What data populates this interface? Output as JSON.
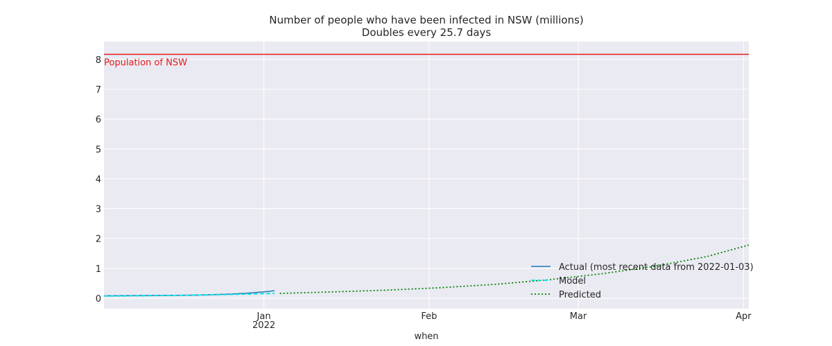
{
  "chart_data": {
    "type": "line",
    "title": "Number of people who have been infected in NSW (millions)",
    "subtitle": "Doubles every 25.7 days",
    "xlabel": "when",
    "ylabel": "",
    "xlim": [
      "2021-12-02",
      "2022-04-02"
    ],
    "ylim": [
      -0.35,
      8.6
    ],
    "grid": true,
    "legend_position": "lower-right",
    "x_ticks": [
      {
        "date": "2022-01-01",
        "label": "Jan",
        "sublabel": "2022"
      },
      {
        "date": "2022-02-01",
        "label": "Feb",
        "sublabel": ""
      },
      {
        "date": "2022-03-01",
        "label": "Mar",
        "sublabel": ""
      },
      {
        "date": "2022-04-01",
        "label": "Apr",
        "sublabel": ""
      }
    ],
    "y_ticks": [
      {
        "value": 0,
        "label": "0"
      },
      {
        "value": 1,
        "label": "1"
      },
      {
        "value": 2,
        "label": "2"
      },
      {
        "value": 3,
        "label": "3"
      },
      {
        "value": 4,
        "label": "4"
      },
      {
        "value": 5,
        "label": "5"
      },
      {
        "value": 6,
        "label": "6"
      },
      {
        "value": 7,
        "label": "7"
      },
      {
        "value": 8,
        "label": "8"
      }
    ],
    "reference_line": {
      "y": 8.17,
      "label": "Population of NSW",
      "color": "#e41a1c"
    },
    "series": [
      {
        "name": "Actual (most recent data from 2022-01-03)",
        "color": "#1f77b4",
        "style": "solid",
        "points": [
          {
            "x": "2021-12-02",
            "y": 0.08
          },
          {
            "x": "2021-12-06",
            "y": 0.085
          },
          {
            "x": "2021-12-10",
            "y": 0.09
          },
          {
            "x": "2021-12-14",
            "y": 0.095
          },
          {
            "x": "2021-12-18",
            "y": 0.1
          },
          {
            "x": "2021-12-22",
            "y": 0.115
          },
          {
            "x": "2021-12-26",
            "y": 0.14
          },
          {
            "x": "2021-12-29",
            "y": 0.17
          },
          {
            "x": "2022-01-01",
            "y": 0.21
          },
          {
            "x": "2022-01-03",
            "y": 0.25
          }
        ]
      },
      {
        "name": "Model",
        "color": "#00e5e5",
        "style": "dashed",
        "points": [
          {
            "x": "2021-12-02",
            "y": 0.07
          },
          {
            "x": "2021-12-08",
            "y": 0.08
          },
          {
            "x": "2021-12-14",
            "y": 0.09
          },
          {
            "x": "2021-12-20",
            "y": 0.105
          },
          {
            "x": "2021-12-26",
            "y": 0.125
          },
          {
            "x": "2022-01-01",
            "y": 0.15
          },
          {
            "x": "2022-01-03",
            "y": 0.16
          }
        ]
      },
      {
        "name": "Predicted",
        "color": "#008000",
        "style": "dotted",
        "points": [
          {
            "x": "2022-01-04",
            "y": 0.16
          },
          {
            "x": "2022-01-14",
            "y": 0.21
          },
          {
            "x": "2022-01-24",
            "y": 0.27
          },
          {
            "x": "2022-02-03",
            "y": 0.35
          },
          {
            "x": "2022-02-13",
            "y": 0.46
          },
          {
            "x": "2022-02-23",
            "y": 0.61
          },
          {
            "x": "2022-03-05",
            "y": 0.81
          },
          {
            "x": "2022-03-15",
            "y": 1.06
          },
          {
            "x": "2022-03-25",
            "y": 1.39
          },
          {
            "x": "2022-04-02",
            "y": 1.78
          }
        ]
      }
    ]
  }
}
